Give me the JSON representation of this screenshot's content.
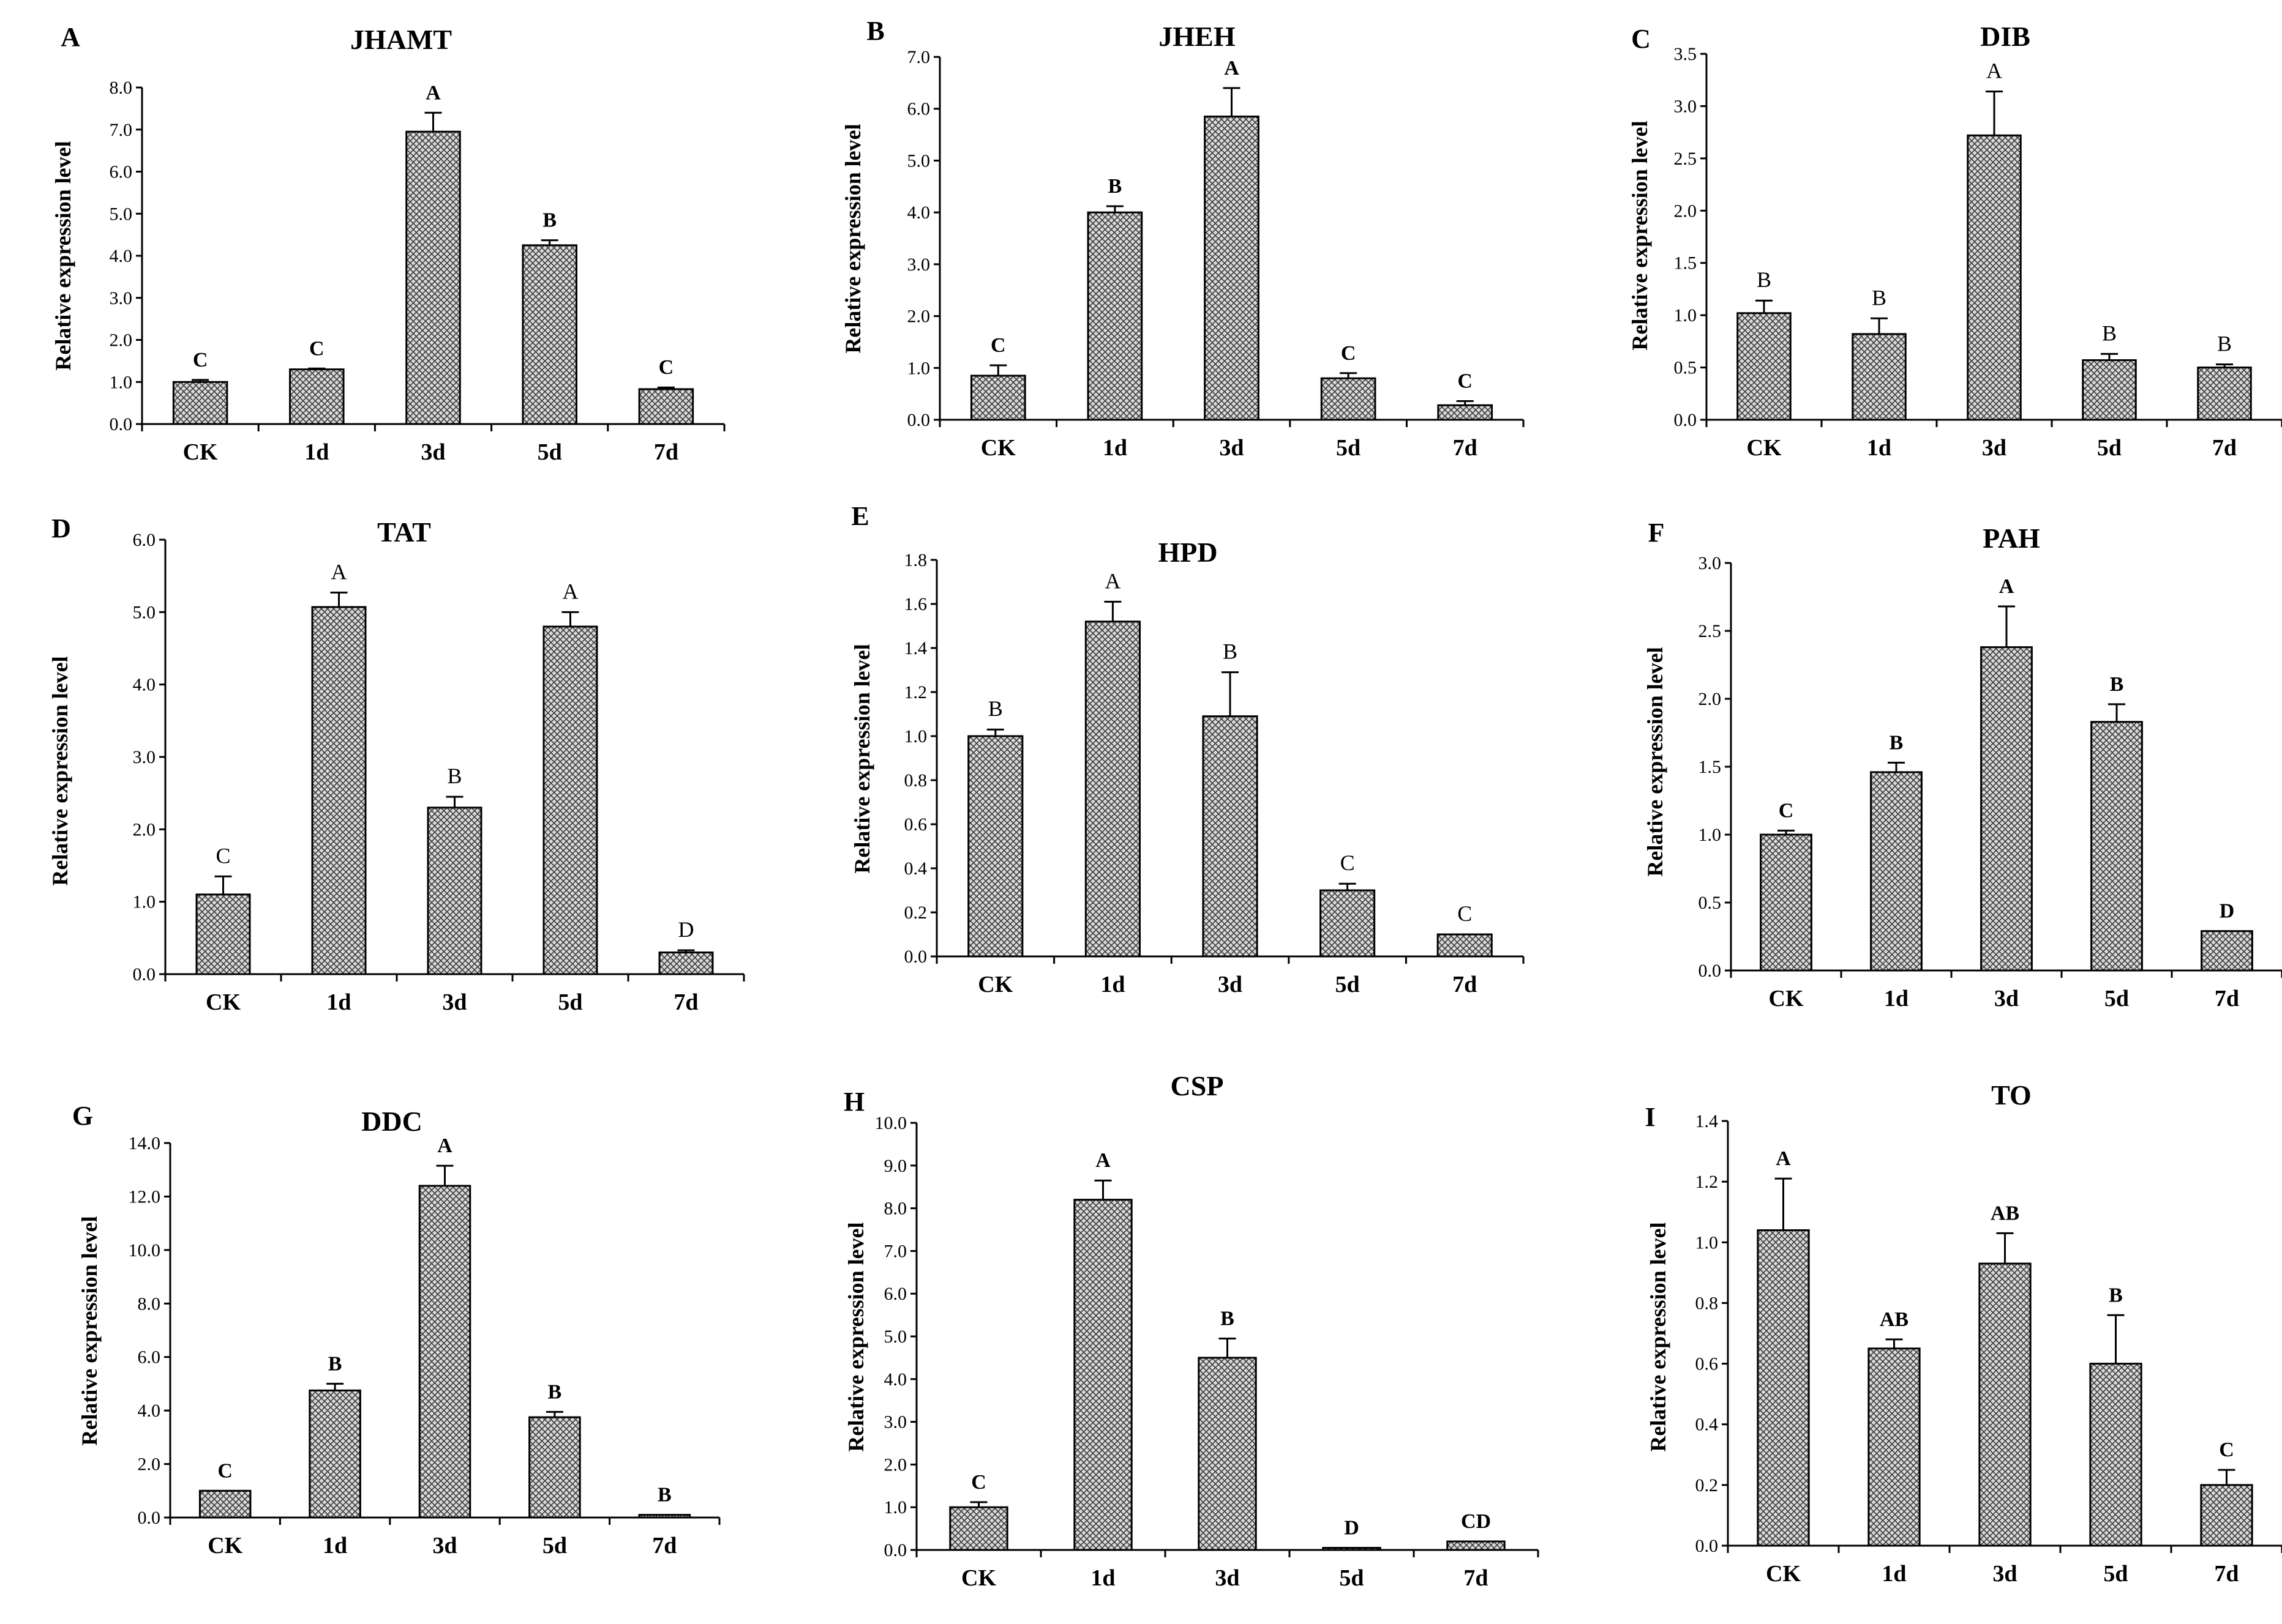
{
  "figure": {
    "ylabel": "Relative expression level",
    "categories": [
      "CK",
      "1d",
      "3d",
      "5d",
      "7d"
    ]
  },
  "chart_data": [
    {
      "panel": "A",
      "type": "bar",
      "title": "JHAMT",
      "ylabel": "Relative expression level",
      "categories": [
        "CK",
        "1d",
        "3d",
        "5d",
        "7d"
      ],
      "values": [
        1.0,
        1.3,
        6.95,
        4.25,
        0.83
      ],
      "errors": [
        0.05,
        0.02,
        0.45,
        0.12,
        0.04
      ],
      "letters": [
        "C",
        "C",
        "A",
        "B",
        "C"
      ],
      "ylim": [
        0,
        8
      ],
      "ticks": [
        "0.0",
        "1.0",
        "2.0",
        "3.0",
        "4.0",
        "5.0",
        "6.0",
        "7.0",
        "8.0"
      ]
    },
    {
      "panel": "B",
      "type": "bar",
      "title": "JHEH",
      "ylabel": "Relative expression level",
      "categories": [
        "CK",
        "1d",
        "3d",
        "5d",
        "7d"
      ],
      "values": [
        0.85,
        4.0,
        5.85,
        0.8,
        0.28
      ],
      "errors": [
        0.2,
        0.12,
        0.55,
        0.1,
        0.08
      ],
      "letters": [
        "C",
        "B",
        "A",
        "C",
        "C"
      ],
      "ylim": [
        0,
        7
      ],
      "ticks": [
        "0.0",
        "1.0",
        "2.0",
        "3.0",
        "4.0",
        "5.0",
        "6.0",
        "7.0"
      ]
    },
    {
      "panel": "C",
      "type": "bar",
      "title": "DIB",
      "ylabel": "Relative expression level",
      "categories": [
        "CK",
        "1d",
        "3d",
        "5d",
        "7d"
      ],
      "values": [
        1.02,
        0.82,
        2.72,
        0.57,
        0.5
      ],
      "errors": [
        0.12,
        0.15,
        0.42,
        0.06,
        0.03
      ],
      "letters": [
        "B",
        "B",
        "A",
        "B",
        "B"
      ],
      "ylim": [
        0,
        3.5
      ],
      "ticks": [
        "0.0",
        "0.5",
        "1.0",
        "1.5",
        "2.0",
        "2.5",
        "3.0",
        "3.5"
      ]
    },
    {
      "panel": "D",
      "type": "bar",
      "title": "TAT",
      "ylabel": "Relative expression level",
      "categories": [
        "CK",
        "1d",
        "3d",
        "5d",
        "7d"
      ],
      "values": [
        1.1,
        5.07,
        2.3,
        4.8,
        0.3
      ],
      "errors": [
        0.25,
        0.2,
        0.15,
        0.2,
        0.03
      ],
      "letters": [
        "C",
        "A",
        "B",
        "A",
        "D"
      ],
      "ylim": [
        0,
        6
      ],
      "ticks": [
        "0.0",
        "1.0",
        "2.0",
        "3.0",
        "4.0",
        "5.0",
        "6.0"
      ]
    },
    {
      "panel": "E",
      "type": "bar",
      "title": "HPD",
      "ylabel": "Relative expression level",
      "categories": [
        "CK",
        "1d",
        "3d",
        "5d",
        "7d"
      ],
      "values": [
        1.0,
        1.52,
        1.09,
        0.3,
        0.1
      ],
      "errors": [
        0.03,
        0.09,
        0.2,
        0.03,
        0.0
      ],
      "letters": [
        "B",
        "A",
        "B",
        "C",
        "C"
      ],
      "ylim": [
        0,
        1.8
      ],
      "ticks": [
        "0.0",
        "0.2",
        "0.4",
        "0.6",
        "0.8",
        "1.0",
        "1.2",
        "1.4",
        "1.6",
        "1.8"
      ]
    },
    {
      "panel": "F",
      "type": "bar",
      "title": "PAH",
      "ylabel": "Relative expression level",
      "categories": [
        "CK",
        "1d",
        "3d",
        "5d",
        "7d"
      ],
      "values": [
        1.0,
        1.46,
        2.38,
        1.83,
        0.29
      ],
      "errors": [
        0.03,
        0.07,
        0.3,
        0.13,
        0.0
      ],
      "letters": [
        "C",
        "B",
        "A",
        "B",
        "D"
      ],
      "ylim": [
        0,
        3
      ],
      "ticks": [
        "0.0",
        "0.5",
        "1.0",
        "1.5",
        "2.0",
        "2.5",
        "3.0"
      ]
    },
    {
      "panel": "G",
      "type": "bar",
      "title": "DDC",
      "ylabel": "Relative expression level",
      "categories": [
        "CK",
        "1d",
        "3d",
        "5d",
        "7d"
      ],
      "values": [
        1.0,
        4.75,
        12.4,
        3.75,
        0.1
      ],
      "errors": [
        0.0,
        0.25,
        0.75,
        0.2,
        0.0
      ],
      "letters": [
        "C",
        "B",
        "A",
        "B",
        "B"
      ],
      "ylim": [
        0,
        14
      ],
      "ticks": [
        "0.0",
        "2.0",
        "4.0",
        "6.0",
        "8.0",
        "10.0",
        "12.0",
        "14.0"
      ]
    },
    {
      "panel": "H",
      "type": "bar",
      "title": "CSP",
      "ylabel": "Relative expression level",
      "categories": [
        "CK",
        "1d",
        "3d",
        "5d",
        "7d"
      ],
      "values": [
        1.0,
        8.2,
        4.5,
        0.05,
        0.2
      ],
      "errors": [
        0.12,
        0.45,
        0.45,
        0.0,
        0.0
      ],
      "letters": [
        "C",
        "A",
        "B",
        "D",
        "CD"
      ],
      "ylim": [
        0,
        10
      ],
      "ticks": [
        "0.0",
        "1.0",
        "2.0",
        "3.0",
        "4.0",
        "5.0",
        "6.0",
        "7.0",
        "8.0",
        "9.0",
        "10.0"
      ]
    },
    {
      "panel": "I",
      "type": "bar",
      "title": "TO",
      "ylabel": "Relative expression level",
      "categories": [
        "CK",
        "1d",
        "3d",
        "5d",
        "7d"
      ],
      "values": [
        1.04,
        0.65,
        0.93,
        0.6,
        0.2
      ],
      "errors": [
        0.17,
        0.03,
        0.1,
        0.16,
        0.05
      ],
      "letters": [
        "A",
        "AB",
        "AB",
        "B",
        "C"
      ],
      "ylim": [
        0,
        1.4
      ],
      "ticks": [
        "0.0",
        "0.2",
        "0.4",
        "0.6",
        "0.8",
        "1.0",
        "1.2",
        "1.4"
      ]
    }
  ]
}
